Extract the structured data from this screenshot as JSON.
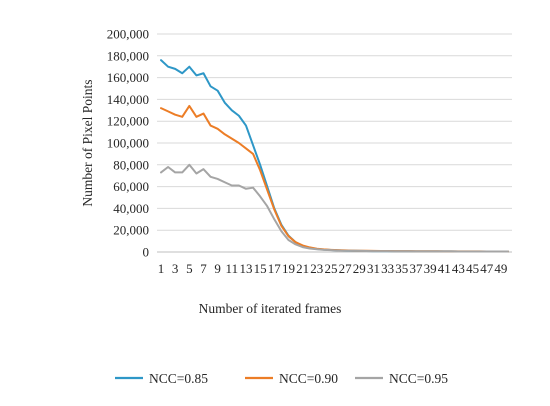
{
  "chart_data": {
    "type": "line",
    "xlabel": "Number of iterated frames",
    "ylabel": "Number of Pixel Points",
    "ylim": [
      0,
      200000
    ],
    "y_ticks": [
      0,
      20000,
      40000,
      60000,
      80000,
      100000,
      120000,
      140000,
      160000,
      180000,
      200000
    ],
    "y_tick_labels": [
      "0",
      "20,000",
      "40,000",
      "60,000",
      "80,000",
      "100,000",
      "120,000",
      "140,000",
      "160,000",
      "180,000",
      "200,000"
    ],
    "x_tick_labels": [
      "1",
      "3",
      "5",
      "7",
      "9",
      "11",
      "13",
      "15",
      "17",
      "19",
      "21",
      "23",
      "25",
      "27",
      "29",
      "31",
      "33",
      "35",
      "37",
      "39",
      "41",
      "43",
      "45",
      "47",
      "49"
    ],
    "x": [
      1,
      2,
      3,
      4,
      5,
      6,
      7,
      8,
      9,
      10,
      11,
      12,
      13,
      14,
      15,
      16,
      17,
      18,
      19,
      20,
      21,
      22,
      23,
      24,
      25,
      26,
      27,
      28,
      29,
      30,
      31,
      32,
      33,
      34,
      35,
      36,
      37,
      38,
      39,
      40,
      41,
      42,
      43,
      44,
      45,
      46,
      47,
      48,
      49,
      50
    ],
    "grid": true,
    "legend_position": "bottom",
    "series": [
      {
        "name": "NCC=0.85",
        "color": "#2E97C7",
        "values": [
          176000,
          170000,
          168000,
          164000,
          170000,
          162000,
          164000,
          152000,
          148000,
          137000,
          130000,
          125000,
          116000,
          98000,
          80000,
          60000,
          40000,
          25000,
          15000,
          9000,
          5500,
          3800,
          2800,
          2200,
          1800,
          1500,
          1300,
          1100,
          1000,
          900,
          850,
          800,
          750,
          700,
          700,
          650,
          600,
          600,
          600,
          550,
          550,
          550,
          500,
          500,
          500,
          500,
          500,
          500,
          450,
          450
        ]
      },
      {
        "name": "NCC=0.90",
        "color": "#EC7D26",
        "values": [
          132000,
          129000,
          126000,
          124000,
          134000,
          124000,
          127000,
          116000,
          113000,
          108000,
          104000,
          100000,
          95000,
          90000,
          75000,
          57000,
          39000,
          24000,
          14500,
          9000,
          6000,
          4200,
          3000,
          2400,
          2000,
          1700,
          1500,
          1300,
          1200,
          1100,
          1000,
          950,
          900,
          850,
          800,
          750,
          700,
          700,
          650,
          650,
          600,
          600,
          600,
          550,
          550,
          550,
          500,
          500,
          500,
          500
        ]
      },
      {
        "name": "NCC=0.95",
        "color": "#A5A5A5",
        "values": [
          73000,
          78000,
          73000,
          73000,
          80000,
          72000,
          76000,
          69000,
          67000,
          64000,
          61000,
          61000,
          58000,
          59000,
          51000,
          42000,
          30000,
          19000,
          11000,
          7000,
          4500,
          3200,
          2500,
          2000,
          1700,
          1400,
          1200,
          1100,
          1000,
          900,
          850,
          800,
          750,
          700,
          700,
          650,
          600,
          600,
          600,
          550,
          550,
          550,
          500,
          500,
          500,
          500,
          500,
          500,
          450,
          450
        ]
      }
    ]
  }
}
